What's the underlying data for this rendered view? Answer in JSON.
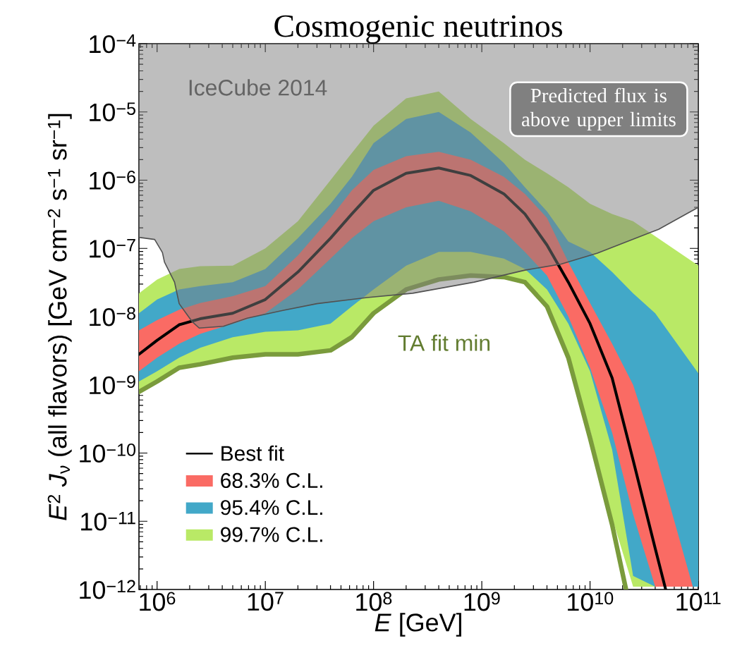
{
  "chart_data": {
    "type": "line",
    "title": "Cosmogenic neutrinos",
    "xlabel": "*E* [GeV]",
    "ylabel": "*E*$^{2}$ *J*$_{ν}$  (all flavors)  [GeV cm$^{−2}$ s$^{−1}$ sr$^{−1}$]",
    "log": "xy",
    "legend": "bottom left",
    "xlim": [
      680000,
      100000000000
    ],
    "ylim": [
      1e-12,
      0.0001
    ],
    "xticks": [
      {
        "value": 1000000,
        "label": "10$^{6}$"
      },
      {
        "value": 10000000,
        "label": "10$^{7}$"
      },
      {
        "value": 100000000,
        "label": "10$^{8}$"
      },
      {
        "value": 1000000000,
        "label": "10$^{9}$"
      },
      {
        "value": 10000000000,
        "label": "10$^{10}$"
      },
      {
        "value": 100000000000,
        "label": "10$^{11}$"
      }
    ],
    "yticks": [
      {
        "value": 1e-12,
        "label": "10$^{−12}$"
      },
      {
        "value": 1e-11,
        "label": "10$^{−11}$"
      },
      {
        "value": 1e-10,
        "label": "10$^{−10}$"
      },
      {
        "value": 1e-09,
        "label": "10$^{−9}$"
      },
      {
        "value": 1e-08,
        "label": "10$^{−8}$"
      },
      {
        "value": 1e-07,
        "label": "10$^{−7}$"
      },
      {
        "value": 1e-06,
        "label": "10$^{−6}$"
      },
      {
        "value": 1e-05,
        "label": "10$^{−5}$"
      },
      {
        "value": 0.0001,
        "label": "10$^{−4}$"
      }
    ],
    "series": [
      {
        "name": "99.7% C.L.",
        "color": "#b9e966",
        "x": [
          680000,
          1000000,
          1600000,
          2500000,
          5000000,
          10000000,
          20000000,
          40000000,
          63000000,
          100000000,
          200000000,
          400000000,
          790000000,
          1600000000,
          2500000000,
          4000000000,
          6300000000,
          10000000000,
          16000000000,
          25000000000,
          100000000000
        ],
        "values": [
          null,
          null,
          null,
          null,
          null,
          null,
          null,
          null,
          null,
          null,
          null,
          null,
          null,
          null,
          null,
          null,
          null,
          null,
          null,
          null,
          null
        ],
        "upper": [
          2.2e-08,
          3.5e-08,
          5e-08,
          5.5e-08,
          5.6e-08,
          1e-07,
          2.5e-07,
          1e-06,
          2.5e-06,
          6.3e-06,
          1.58e-05,
          2e-05,
          7.9e-06,
          3.5e-06,
          2e-06,
          1.26e-06,
          7.9e-07,
          4.5e-07,
          3.2e-07,
          2.5e-07,
          5.6e-08
        ],
        "lower": [
          7.9e-10,
          1.12e-09,
          1.78e-09,
          2e-09,
          2.5e-09,
          2.8e-09,
          2.8e-09,
          3.2e-09,
          5e-09,
          1.12e-08,
          2.5e-08,
          3.5e-08,
          4e-08,
          3.8e-08,
          3.2e-08,
          1.41e-08,
          2.5e-09,
          2.2e-10,
          1.12e-11,
          1.1e-12,
          1.1e-12
        ]
      },
      {
        "name": "95.4% C.L.",
        "color": "#42a8c8",
        "x": [
          680000,
          1000000,
          1600000,
          2500000,
          5000000,
          10000000,
          20000000,
          40000000,
          63000000,
          100000000,
          200000000,
          400000000,
          790000000,
          1600000000,
          2500000000,
          4000000000,
          6300000000,
          10000000000,
          16000000000,
          25000000000,
          40000000000,
          100000000000
        ],
        "values": [
          null,
          null,
          null,
          null,
          null,
          null,
          null,
          null,
          null,
          null,
          null,
          null,
          null,
          null,
          null,
          null,
          null,
          null,
          null,
          null,
          null,
          null
        ],
        "upper": [
          1.12e-08,
          1.78e-08,
          2.5e-08,
          2.8e-08,
          3.2e-08,
          5e-08,
          1.41e-07,
          4.5e-07,
          1.12e-06,
          3.5e-06,
          7.9e-06,
          1e-05,
          5e-06,
          1.78e-06,
          7.9e-07,
          3.5e-07,
          1.26e-07,
          8.9e-08,
          4.5e-08,
          2.2e-08,
          1.12e-08,
          1.48e-09
        ],
        "lower": [
          1.12e-09,
          1.58e-09,
          2.5e-09,
          3.5e-09,
          5e-09,
          6e-09,
          6.3e-09,
          7.9e-09,
          1.41e-08,
          2.5e-08,
          5.6e-08,
          8.9e-08,
          8.9e-08,
          7.1e-08,
          5e-08,
          2.5e-08,
          7.9e-09,
          1.58e-09,
          1.12e-10,
          1.58e-12,
          1.1e-12,
          1.1e-12
        ]
      },
      {
        "name": "68.3% C.L.",
        "color": "#fa6b64",
        "x": [
          680000,
          1000000,
          1600000,
          2500000,
          5000000,
          10000000,
          20000000,
          40000000,
          63000000,
          100000000,
          200000000,
          400000000,
          790000000,
          1600000000,
          2500000000,
          4000000000,
          6300000000,
          10000000000,
          16000000000,
          25000000000,
          40000000000,
          89000000000
        ],
        "values": [
          null,
          null,
          null,
          null,
          null,
          null,
          null,
          null,
          null,
          null,
          null,
          null,
          null,
          null,
          null,
          null,
          null,
          null,
          null,
          null,
          null,
          null
        ],
        "upper": [
          6.3e-09,
          8.9e-09,
          1.26e-08,
          1.58e-08,
          2e-08,
          2.8e-08,
          7.9e-08,
          2.8e-07,
          7.1e-07,
          1.41e-06,
          2.24e-06,
          2.6e-06,
          2e-06,
          1.12e-06,
          6.3e-07,
          2.8e-07,
          6.3e-08,
          1.58e-08,
          4e-09,
          1e-09,
          1e-10,
          1.1e-12
        ],
        "lower": [
          1.58e-09,
          2.5e-09,
          4e-09,
          5.6e-09,
          7.9e-09,
          1.12e-08,
          2.5e-08,
          7.1e-08,
          1.41e-07,
          2.5e-07,
          4e-07,
          5e-07,
          3.5e-07,
          1.78e-07,
          8.9e-08,
          4e-08,
          1e-08,
          1.78e-09,
          2e-10,
          1.26e-11,
          1.1e-12,
          1.1e-12
        ]
      },
      {
        "color": "#7a9b3c",
        "x": [
          680000,
          1000000,
          1600000,
          2500000,
          5000000,
          10000000,
          20000000,
          40000000,
          63000000,
          100000000,
          200000000,
          400000000,
          790000000,
          1600000000,
          2500000000,
          4000000000,
          6300000000,
          10000000000,
          16000000000,
          21500000000
        ],
        "values": [
          7.9e-10,
          1.12e-09,
          1.78e-09,
          2e-09,
          2.5e-09,
          2.8e-09,
          2.8e-09,
          3.2e-09,
          5e-09,
          1.12e-08,
          2.5e-08,
          3.5e-08,
          4e-08,
          3.8e-08,
          3.2e-08,
          1.41e-08,
          2.5e-09,
          1.66e-10,
          8.9e-12,
          1e-12
        ]
      },
      {
        "name": "Best fit",
        "color": "#000000",
        "x": [
          680000,
          1000000,
          1600000,
          2500000,
          5000000,
          10000000,
          20000000,
          40000000,
          63000000,
          100000000,
          200000000,
          400000000,
          790000000,
          1600000000,
          2500000000,
          4000000000,
          6300000000,
          10000000000,
          16000000000,
          25000000000,
          40000000000,
          50000000000
        ],
        "values": [
          2.8e-09,
          4.5e-09,
          7.6e-09,
          9.3e-09,
          1.12e-08,
          1.78e-08,
          4.5e-08,
          1.41e-07,
          3.2e-07,
          7.1e-07,
          1.26e-06,
          1.51e-06,
          1.17e-06,
          6.3e-07,
          3.2e-07,
          1.12e-07,
          3.2e-08,
          7.9e-09,
          1.26e-09,
          7.9e-11,
          4e-12,
          1e-12
        ]
      },
      {
        "type": "area",
        "color": "#7d7d7d",
        "x": [
          680000,
          950000,
          1120000,
          1170000,
          1450000,
          1600000,
          2100000,
          2450000,
          4100000,
          6800000,
          14500000,
          30000000,
          87000000,
          230000000,
          850000000,
          2500000000,
          5400000000,
          11700000000,
          33000000000,
          43000000000,
          100000000000
        ],
        "values": [
          1.45e-07,
          1.35e-07,
          8.7e-08,
          6.3e-08,
          3.2e-08,
          1.55e-08,
          8.5e-09,
          6.8e-09,
          7.2e-09,
          9.5e-09,
          1.23e-08,
          1.55e-08,
          1.9e-08,
          2.2e-08,
          3.2e-08,
          4.8e-08,
          5.9e-08,
          8.5e-08,
          1.62e-07,
          1.9e-07,
          4e-07
        ]
      }
    ],
    "annotations": [
      "Predicted flux is above upper limits",
      "TA fit min",
      "IceCube 2014"
    ]
  }
}
